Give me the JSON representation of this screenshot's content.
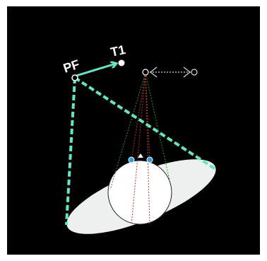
{
  "labels": {
    "pf": "PF",
    "t1": "T1"
  },
  "colors": {
    "background": "#000000",
    "border": "#ffffff",
    "aqua": "#5fe8c4",
    "ellipse_fill": "#eef0f0",
    "circle_fill": "#ffffff",
    "circle_stroke": "#222222",
    "green_line": "#1f9f1f",
    "red_line": "#c0302c",
    "dot_blue": "#2a9de0",
    "marker_white": "#ffffff",
    "arrow_gray": "#d8d8d8"
  },
  "icons": {
    "pf_point": "hollow-circle",
    "t1_point": "filled-dot",
    "camera_point": "hollow-circle",
    "drag_handle": "double-headed-arrow"
  }
}
